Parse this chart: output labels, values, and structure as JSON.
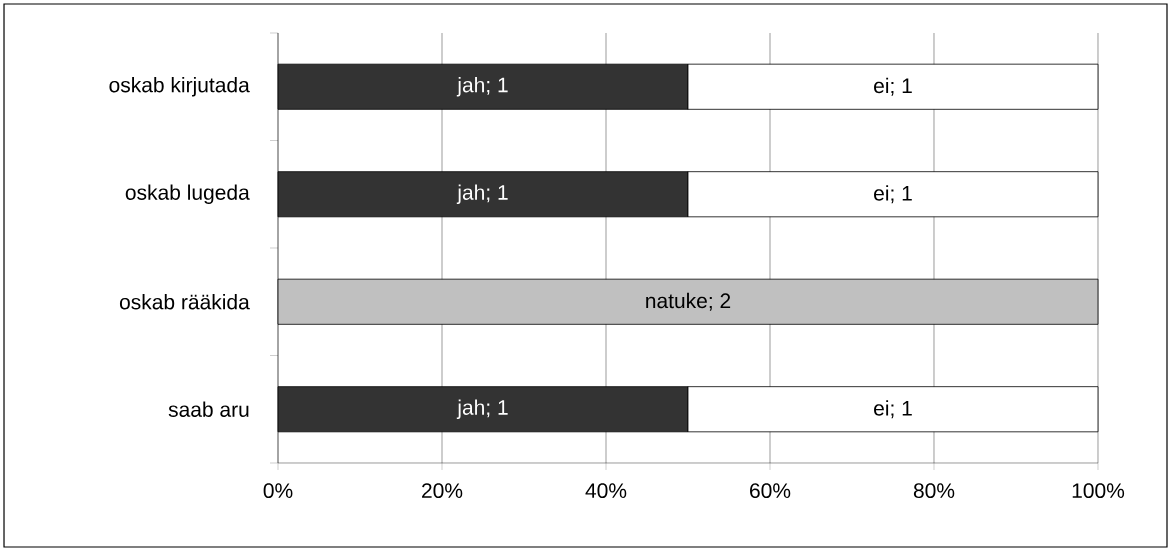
{
  "chart_data": {
    "type": "bar",
    "orientation": "horizontal",
    "stacked": true,
    "categories": [
      "oskab kirjutada",
      "oskab lugeda",
      "oskab rääkida",
      "saab aru"
    ],
    "series": [
      {
        "color": "#333333",
        "values": [
          50,
          50,
          null,
          50
        ]
      },
      {
        "color": "#c0c0c0",
        "values": [
          null,
          null,
          100,
          null
        ]
      },
      {
        "color": "#ffffff",
        "values": [
          50,
          50,
          null,
          50
        ]
      }
    ],
    "annotations": [
      "jah; 1",
      "ei; 1",
      "jah; 1",
      "ei; 1",
      "natuke; 2",
      "jah; 1",
      "ei; 1"
    ],
    "xlim": [
      0,
      100
    ],
    "xticks": [
      {
        "value": 0,
        "label": "0%"
      },
      {
        "value": 20,
        "label": "20%"
      },
      {
        "value": 40,
        "label": "40%"
      },
      {
        "value": 60,
        "label": "60%"
      },
      {
        "value": 80,
        "label": "80%"
      },
      {
        "value": 100,
        "label": "100%"
      }
    ],
    "grid": "x"
  }
}
